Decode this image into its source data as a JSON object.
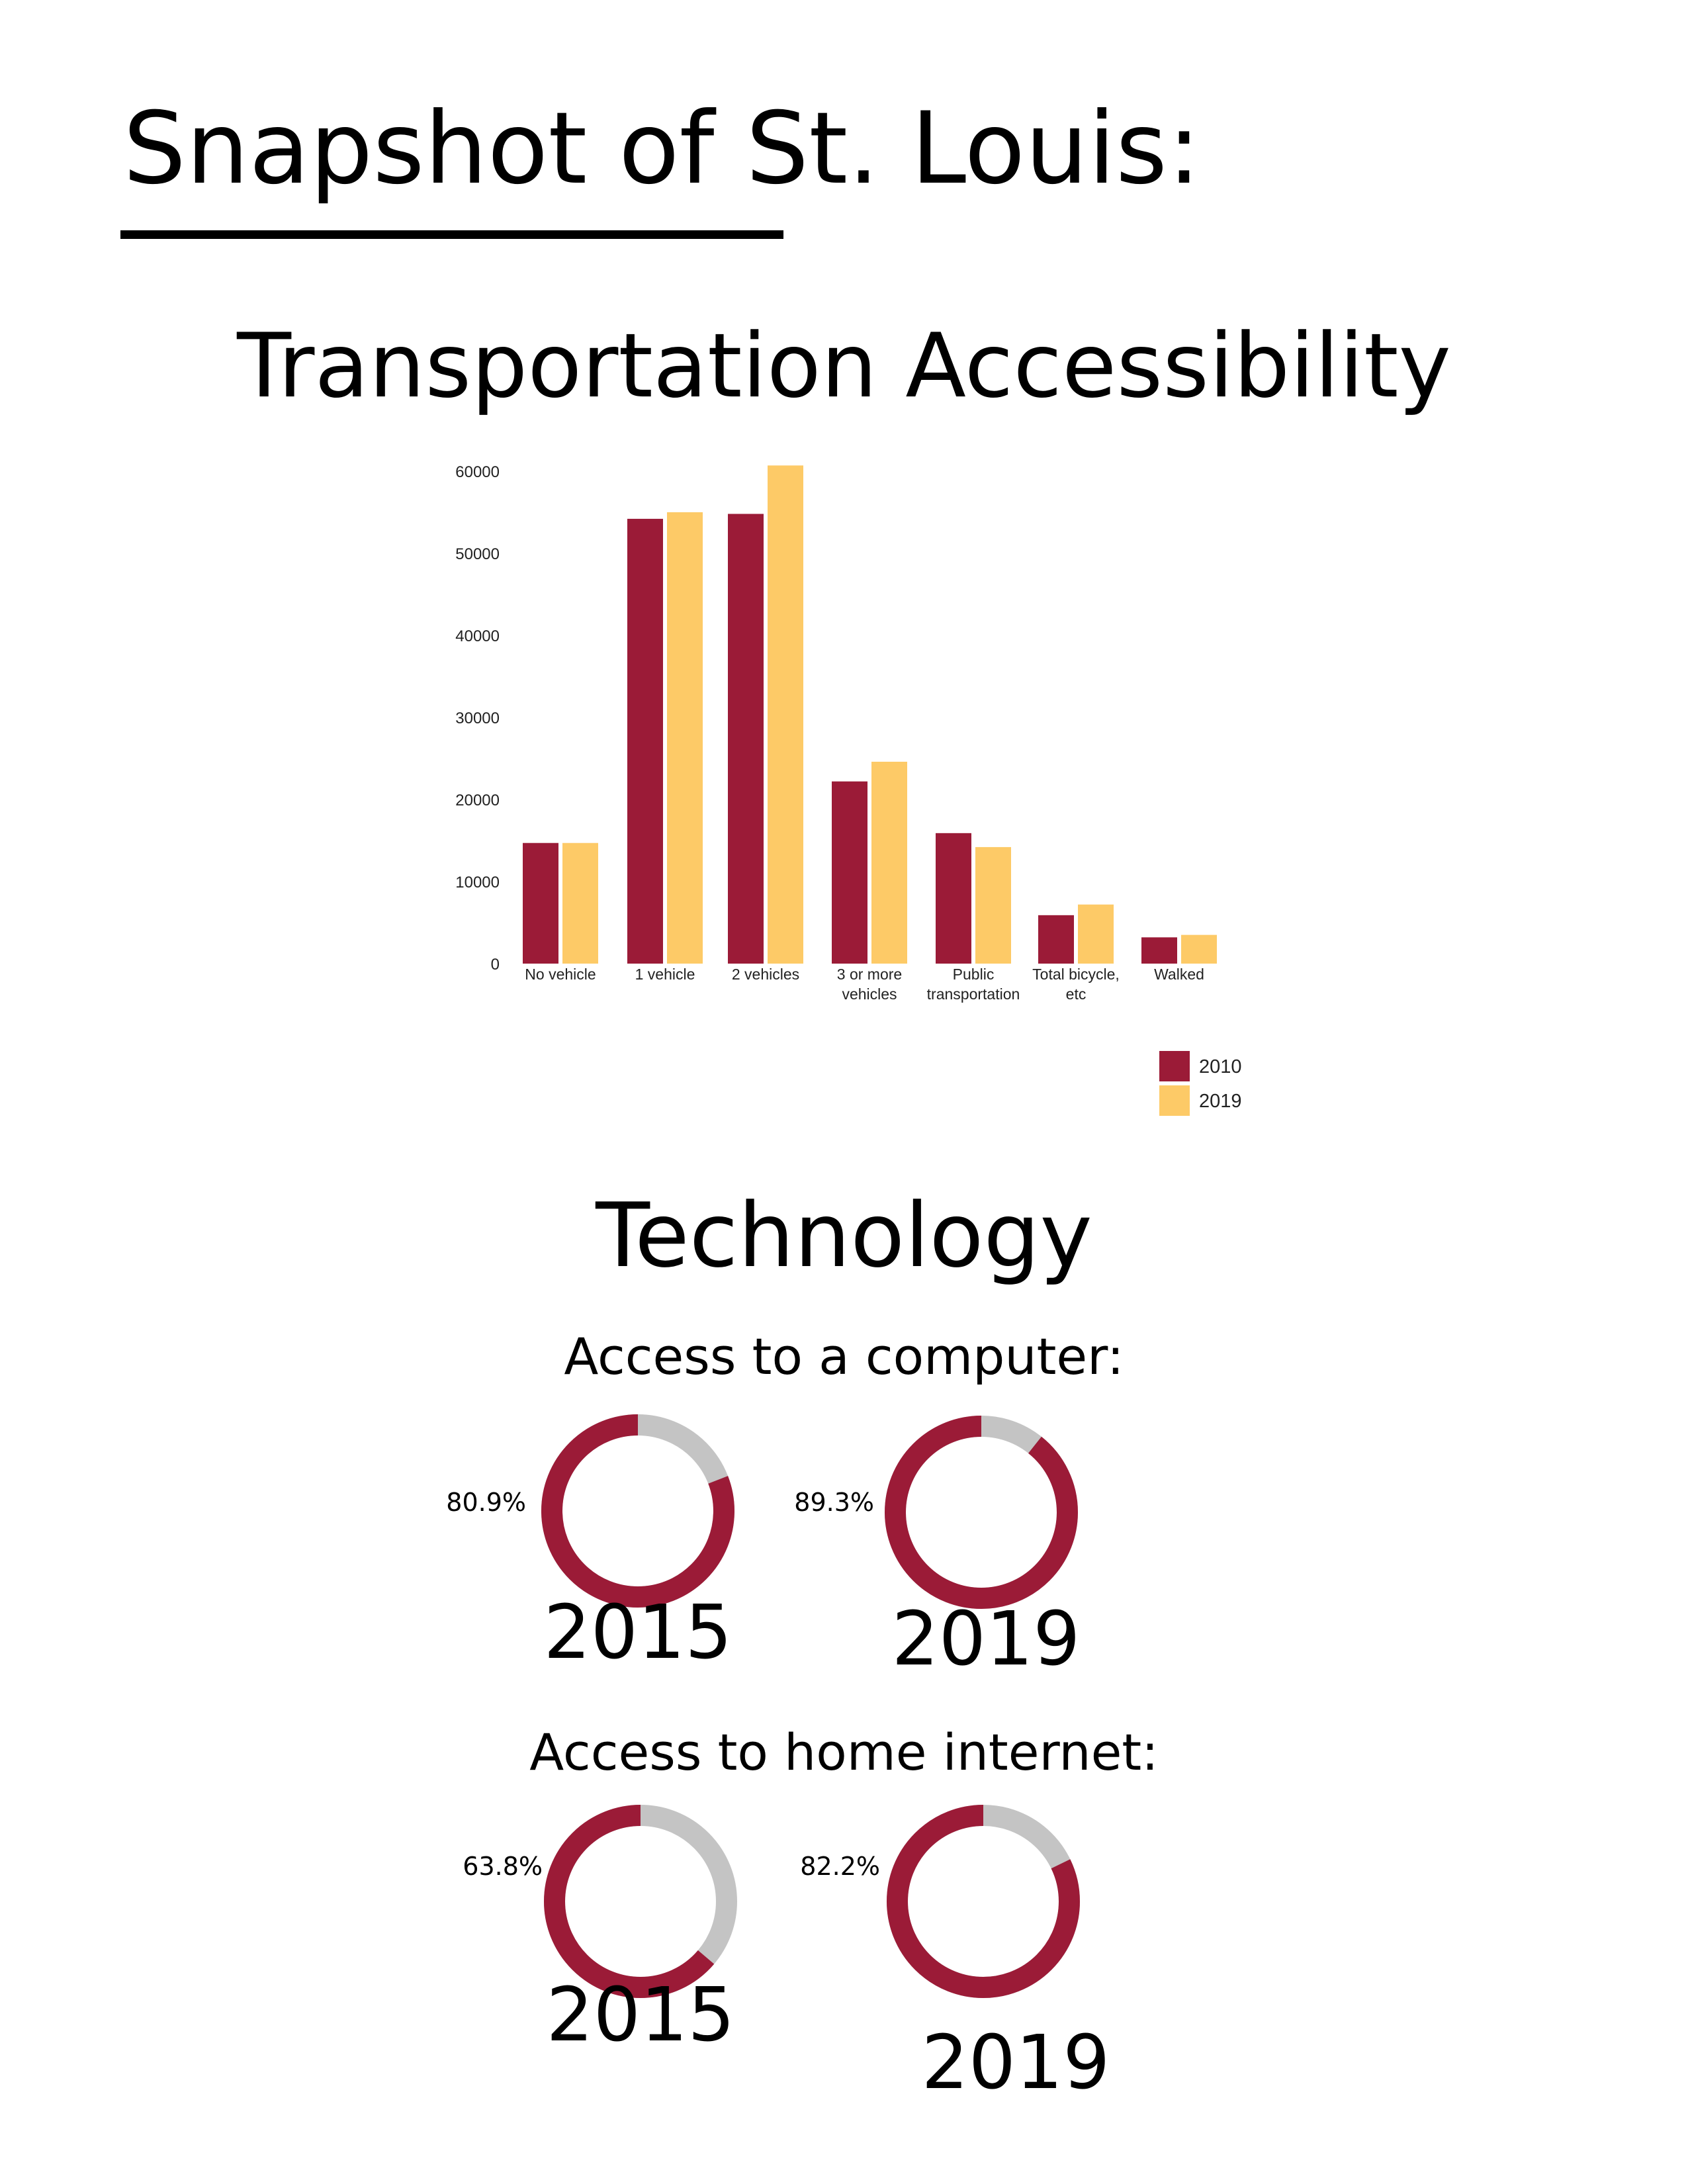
{
  "page": {
    "title": "Snapshot of St. Louis:",
    "sections": {
      "transport": "Transportation Accessibility",
      "technology": "Technology"
    },
    "subsections": {
      "computer": "Access to a computer:",
      "internet": "Access to home internet:"
    }
  },
  "colors": {
    "series_2010": "#9b1b37",
    "series_2019": "#fdca67",
    "donut_remainder": "#c4c4c4"
  },
  "chart_data": [
    {
      "type": "bar",
      "categories": [
        "No vehicle",
        "1 vehicle",
        "2 vehicles",
        "3 or more vehicles",
        "Public transportation",
        "Total bicycle, etc",
        "Walked"
      ],
      "category_labels": [
        [
          "No vehicle"
        ],
        [
          "1 vehicle"
        ],
        [
          "2 vehicles"
        ],
        [
          "3 or more",
          "vehicles"
        ],
        [
          "Public",
          "transportation"
        ],
        [
          "Total bicycle,",
          "etc"
        ],
        [
          "Walked"
        ]
      ],
      "series": [
        {
          "name": "2010",
          "values": [
            14700,
            54200,
            54800,
            22200,
            15900,
            5900,
            3200
          ]
        },
        {
          "name": "2019",
          "values": [
            14700,
            55000,
            60700,
            24600,
            14200,
            7200,
            3500
          ]
        }
      ],
      "ylim": [
        0,
        60000
      ],
      "yticks": [
        0,
        10000,
        20000,
        30000,
        40000,
        50000,
        60000
      ],
      "legend": "bottom-right",
      "grid": false
    },
    {
      "type": "pie",
      "group": "Access to a computer:",
      "label": "2015",
      "value_label": "80.9%",
      "values": [
        80.9,
        19.1
      ]
    },
    {
      "type": "pie",
      "group": "Access to a computer:",
      "label": "2019",
      "value_label": "89.3%",
      "values": [
        89.3,
        10.7
      ]
    },
    {
      "type": "pie",
      "group": "Access to home internet:",
      "label": "2015",
      "value_label": "63.8%",
      "values": [
        63.8,
        36.2
      ]
    },
    {
      "type": "pie",
      "group": "Access to home internet:",
      "label": "2019",
      "value_label": "82.2%",
      "values": [
        82.2,
        17.8
      ]
    }
  ]
}
